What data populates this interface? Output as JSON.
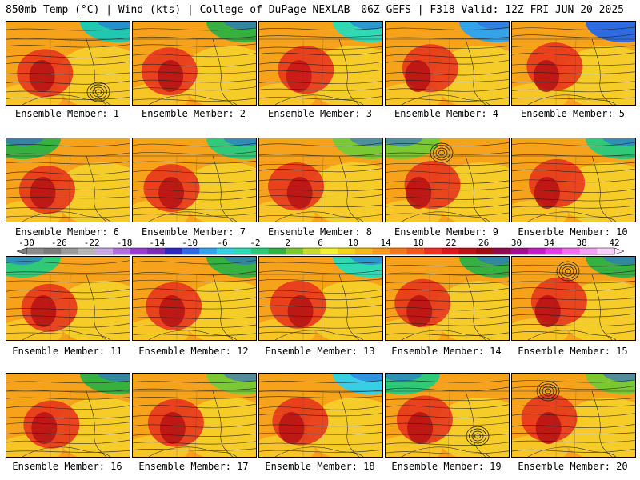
{
  "header": {
    "left": "850mb Temp (°C) | Wind (kts) | College of DuPage NEXLAB",
    "right": "06Z GEFS | F318 Valid: 12Z FRI JUN 20 2025"
  },
  "colorbar": {
    "labels": [
      "-30",
      "-26",
      "-22",
      "-18",
      "-14",
      "-10",
      "-6",
      "-2",
      "2",
      "6",
      "10",
      "14",
      "18",
      "22",
      "26",
      "30",
      "34",
      "38",
      "42"
    ],
    "colors": [
      "#8c8c8c",
      "#7a7a7a",
      "#9a9a9a",
      "#b5b5b5",
      "#c8a6e6",
      "#b46de0",
      "#9b3ccc",
      "#7d2db0",
      "#2b2bb8",
      "#2f6be0",
      "#35a3e8",
      "#38cfe6",
      "#2fd9b4",
      "#2fc978",
      "#36b040",
      "#7ac832",
      "#c8d932",
      "#f2f22e",
      "#f5d21e",
      "#f5b81e",
      "#f59a1e",
      "#f27a1e",
      "#ee5a1e",
      "#e8361e",
      "#d81a1a",
      "#b81414",
      "#9a1010",
      "#8c0c4e",
      "#a01090",
      "#c020c0",
      "#e040e0",
      "#f06ef0",
      "#f6a0f6",
      "#fad0fa"
    ]
  },
  "members": [
    {
      "label": "Ensemble Member: 1",
      "palette": [
        "#20c8b0",
        "#f7a21b",
        "#f6d42a",
        "#e8361e",
        "#b81414"
      ],
      "cold_corner": "top-right",
      "low_center": "bottom-right"
    },
    {
      "label": "Ensemble Member: 2",
      "palette": [
        "#38b040",
        "#f7a21b",
        "#f6d42a",
        "#e8361e",
        "#b81414"
      ],
      "cold_corner": "top-right",
      "low_center": "none"
    },
    {
      "label": "Ensemble Member: 3",
      "palette": [
        "#2fd9b4",
        "#f7a21b",
        "#f6d42a",
        "#e8361e",
        "#c81818"
      ],
      "cold_corner": "top-right",
      "low_center": "none"
    },
    {
      "label": "Ensemble Member: 4",
      "palette": [
        "#35a3e8",
        "#f7a21b",
        "#f6d42a",
        "#e8361e",
        "#b81414"
      ],
      "cold_corner": "top-right",
      "low_center": "none"
    },
    {
      "label": "Ensemble Member: 5",
      "palette": [
        "#2f6be0",
        "#f7a21b",
        "#f6d42a",
        "#e8361e",
        "#b81414"
      ],
      "cold_corner": "top-right",
      "low_center": "none"
    },
    {
      "label": "Ensemble Member: 6",
      "palette": [
        "#38b040",
        "#f7a21b",
        "#f6d42a",
        "#e8361e",
        "#b81414"
      ],
      "cold_corner": "top-left",
      "low_center": "none"
    },
    {
      "label": "Ensemble Member: 7",
      "palette": [
        "#2fc978",
        "#f7a21b",
        "#f6d42a",
        "#e8361e",
        "#b81414"
      ],
      "cold_corner": "top-right",
      "low_center": "none"
    },
    {
      "label": "Ensemble Member: 8",
      "palette": [
        "#7ac832",
        "#f7a21b",
        "#f6d42a",
        "#e8361e",
        "#b81414"
      ],
      "cold_corner": "top-right",
      "low_center": "none"
    },
    {
      "label": "Ensemble Member: 9",
      "palette": [
        "#7ac832",
        "#f7a21b",
        "#f6d42a",
        "#e8361e",
        "#b81414"
      ],
      "cold_corner": "top-left",
      "low_center": "top-center"
    },
    {
      "label": "Ensemble Member: 10",
      "palette": [
        "#2fc978",
        "#f7a21b",
        "#f6d42a",
        "#e8361e",
        "#b81414"
      ],
      "cold_corner": "top-right",
      "low_center": "none"
    },
    {
      "label": "Ensemble Member: 11",
      "palette": [
        "#2fc978",
        "#f7a21b",
        "#f6d42a",
        "#e8361e",
        "#b81414"
      ],
      "cold_corner": "top-left",
      "low_center": "none"
    },
    {
      "label": "Ensemble Member: 12",
      "palette": [
        "#38b040",
        "#f7a21b",
        "#f6d42a",
        "#e8361e",
        "#b81414"
      ],
      "cold_corner": "top-right",
      "low_center": "none"
    },
    {
      "label": "Ensemble Member: 13",
      "palette": [
        "#2fd9b4",
        "#f7a21b",
        "#f6d42a",
        "#e8361e",
        "#b81414"
      ],
      "cold_corner": "top-right",
      "low_center": "none"
    },
    {
      "label": "Ensemble Member: 14",
      "palette": [
        "#38b040",
        "#f7a21b",
        "#f6d42a",
        "#e8361e",
        "#b81414"
      ],
      "cold_corner": "top-right",
      "low_center": "none"
    },
    {
      "label": "Ensemble Member: 15",
      "palette": [
        "#38b040",
        "#f7a21b",
        "#f6d42a",
        "#e8361e",
        "#b81414"
      ],
      "cold_corner": "top-right",
      "low_center": "top-center"
    },
    {
      "label": "Ensemble Member: 16",
      "palette": [
        "#38b040",
        "#f7a21b",
        "#f6d42a",
        "#e8361e",
        "#b81414"
      ],
      "cold_corner": "top-right",
      "low_center": "none"
    },
    {
      "label": "Ensemble Member: 17",
      "palette": [
        "#7ac832",
        "#f7a21b",
        "#f6d42a",
        "#e8361e",
        "#b81414"
      ],
      "cold_corner": "top-right",
      "low_center": "none"
    },
    {
      "label": "Ensemble Member: 18",
      "palette": [
        "#38cfe6",
        "#f7a21b",
        "#f6d42a",
        "#e8361e",
        "#b81414"
      ],
      "cold_corner": "top-right",
      "low_center": "none"
    },
    {
      "label": "Ensemble Member: 19",
      "palette": [
        "#2fc978",
        "#f7a21b",
        "#f6d42a",
        "#e8361e",
        "#b81414"
      ],
      "cold_corner": "top-left",
      "low_center": "bottom-center"
    },
    {
      "label": "Ensemble Member: 20",
      "palette": [
        "#7ac832",
        "#f7a21b",
        "#f6d42a",
        "#e8361e",
        "#b81414"
      ],
      "cold_corner": "top-right",
      "low_center": "top-left"
    }
  ]
}
